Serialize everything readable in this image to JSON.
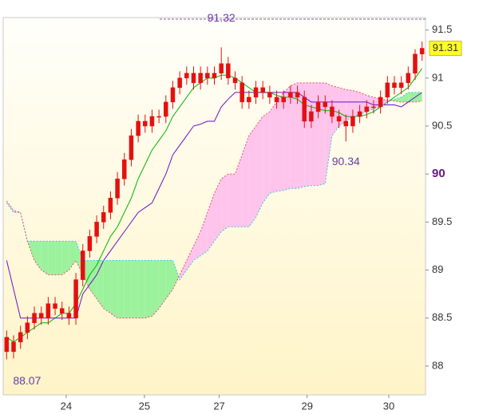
{
  "chart_data": {
    "type": "candlestick",
    "xlim": [
      -0.5,
      60.5
    ],
    "ylim": [
      87.7,
      91.63
    ],
    "xticks": [
      {
        "value": 8.6,
        "label": "24"
      },
      {
        "value": 19.9,
        "label": "25"
      },
      {
        "value": 30.7,
        "label": "27"
      },
      {
        "value": 43.4,
        "label": "29"
      },
      {
        "value": 55.2,
        "label": "30"
      }
    ],
    "yticks": [
      91.5,
      91,
      90.5,
      90,
      89.5,
      89,
      88.5,
      88
    ],
    "candle_color": "#e41010",
    "open": [
      88.3,
      88.15,
      88.25,
      88.35,
      88.45,
      88.55,
      88.5,
      88.65,
      88.6,
      88.55,
      88.5,
      88.9,
      89.2,
      89.35,
      89.5,
      89.6,
      89.75,
      89.95,
      90.15,
      90.4,
      90.55,
      90.5,
      90.6,
      90.6,
      90.75,
      90.9,
      91.0,
      91.05,
      90.95,
      91.05,
      91.0,
      91.05,
      91.15,
      91.0,
      90.95,
      90.75,
      90.8,
      90.9,
      90.85,
      90.8,
      90.75,
      90.8,
      90.85,
      90.8,
      90.55,
      90.65,
      90.75,
      90.7,
      90.6,
      90.55,
      90.5,
      90.6,
      90.65,
      90.7,
      90.7,
      90.8,
      90.95,
      90.9,
      90.95,
      91.05,
      91.25
    ],
    "high": [
      88.37,
      88.32,
      88.42,
      88.52,
      88.62,
      88.62,
      88.72,
      88.72,
      88.67,
      88.62,
      88.97,
      89.27,
      89.42,
      89.57,
      89.67,
      89.82,
      90.02,
      90.22,
      90.47,
      90.62,
      90.62,
      90.67,
      90.67,
      90.82,
      90.97,
      91.07,
      91.12,
      91.12,
      91.12,
      91.12,
      91.12,
      91.32,
      91.22,
      91.07,
      91.02,
      90.87,
      90.97,
      90.97,
      90.92,
      90.87,
      90.87,
      90.92,
      90.92,
      90.87,
      90.72,
      90.82,
      90.82,
      90.77,
      90.67,
      90.62,
      90.67,
      90.72,
      90.77,
      90.77,
      90.87,
      91.02,
      91.02,
      91.02,
      91.12,
      91.3,
      91.38
    ],
    "low": [
      88.07,
      88.08,
      88.18,
      88.28,
      88.38,
      88.43,
      88.43,
      88.53,
      88.48,
      88.43,
      88.43,
      88.83,
      89.13,
      89.28,
      89.43,
      89.53,
      89.68,
      89.88,
      90.08,
      90.33,
      90.43,
      90.43,
      90.53,
      90.53,
      90.68,
      90.83,
      90.93,
      90.88,
      90.88,
      90.93,
      90.93,
      90.98,
      90.93,
      90.88,
      90.68,
      90.68,
      90.73,
      90.78,
      90.73,
      90.68,
      90.68,
      90.73,
      90.73,
      90.48,
      90.48,
      90.58,
      90.63,
      90.53,
      90.48,
      90.34,
      90.43,
      90.53,
      90.58,
      90.63,
      90.63,
      90.73,
      90.83,
      90.83,
      90.88,
      90.98,
      91.18
    ],
    "close": [
      88.15,
      88.25,
      88.35,
      88.45,
      88.55,
      88.5,
      88.65,
      88.6,
      88.55,
      88.5,
      88.9,
      89.2,
      89.35,
      89.5,
      89.6,
      89.75,
      89.95,
      90.15,
      90.4,
      90.55,
      90.5,
      90.6,
      90.6,
      90.75,
      90.9,
      91.0,
      91.05,
      90.95,
      91.05,
      91.0,
      91.05,
      91.15,
      91.0,
      90.95,
      90.75,
      90.8,
      90.9,
      90.85,
      90.8,
      90.75,
      90.8,
      90.85,
      90.8,
      90.55,
      90.65,
      90.75,
      90.7,
      90.6,
      90.55,
      90.5,
      90.6,
      90.65,
      90.7,
      90.7,
      90.8,
      90.95,
      90.9,
      90.95,
      91.05,
      91.25,
      91.31
    ],
    "cloud_colors": {
      "bull": "#9cf29c",
      "bear": "#ffc4ec"
    },
    "lines": [
      {
        "color": "#00b400",
        "values": [
          88.3,
          88.25,
          88.3,
          88.35,
          88.4,
          88.45,
          88.45,
          88.5,
          88.55,
          88.55,
          88.65,
          88.8,
          88.95,
          89.05,
          89.2,
          89.35,
          89.45,
          89.6,
          89.75,
          89.95,
          90.1,
          90.25,
          90.35,
          90.45,
          90.6,
          90.7,
          90.8,
          90.9,
          90.95,
          91.0,
          91.0,
          91.03,
          91.03,
          91.0,
          90.95,
          90.9,
          90.85,
          90.85,
          90.85,
          90.82,
          90.8,
          90.8,
          90.78,
          90.72,
          90.7,
          90.68,
          90.66,
          90.66,
          90.64,
          90.6,
          90.6,
          90.6,
          90.62,
          90.65,
          90.7,
          90.75,
          90.8,
          90.85,
          90.9,
          91.0,
          91.1
        ]
      },
      {
        "color": "#6a10c8",
        "values": [
          89.1,
          88.8,
          88.5,
          88.5,
          88.5,
          88.5,
          88.5,
          88.5,
          88.5,
          88.5,
          88.5,
          88.75,
          88.85,
          88.95,
          89.1,
          89.2,
          89.3,
          89.4,
          89.5,
          89.6,
          89.65,
          89.7,
          89.85,
          90.0,
          90.2,
          90.3,
          90.4,
          90.5,
          90.52,
          90.55,
          90.55,
          90.7,
          90.78,
          90.85,
          90.85,
          90.85,
          90.85,
          90.85,
          90.85,
          90.85,
          90.85,
          90.85,
          90.85,
          90.8,
          90.75,
          90.75,
          90.75,
          90.75,
          90.75,
          90.75,
          90.75,
          90.75,
          90.75,
          90.72,
          90.72,
          90.72,
          90.72,
          90.7,
          90.75,
          90.8,
          90.85
        ]
      },
      {
        "color": "#30c8e8",
        "dashed": true,
        "values": [
          89.7,
          89.6,
          89.6,
          89.3,
          89.3,
          89.3,
          89.3,
          89.3,
          89.3,
          89.3,
          89.3,
          89.1,
          89.1,
          89.1,
          89.1,
          89.1,
          89.1,
          89.1,
          89.1,
          89.1,
          89.1,
          89.1,
          89.1,
          89.1,
          89.1,
          88.9,
          89.0,
          89.1,
          89.15,
          89.2,
          89.3,
          89.4,
          89.45,
          89.45,
          89.45,
          89.45,
          89.55,
          89.7,
          89.8,
          89.82,
          89.83,
          89.85,
          89.85,
          89.87,
          89.88,
          89.88,
          89.9,
          90.4,
          90.5,
          90.55,
          90.6,
          90.62,
          90.65,
          90.68,
          90.7,
          90.75,
          90.78,
          90.8,
          90.85,
          90.85,
          90.85
        ]
      },
      {
        "color": "#e05070",
        "dashed": true,
        "values": [
          89.72,
          89.62,
          89.6,
          89.3,
          89.1,
          89.0,
          88.95,
          88.95,
          88.95,
          89.0,
          89.1,
          88.95,
          88.8,
          88.7,
          88.6,
          88.55,
          88.5,
          88.5,
          88.5,
          88.5,
          88.5,
          88.52,
          88.6,
          88.7,
          88.8,
          88.95,
          89.1,
          89.25,
          89.4,
          89.6,
          89.8,
          89.95,
          90.0,
          90.0,
          90.2,
          90.4,
          90.5,
          90.6,
          90.65,
          90.75,
          90.85,
          90.92,
          90.95,
          90.95,
          90.95,
          90.95,
          90.95,
          90.92,
          90.9,
          90.88,
          90.87,
          90.85,
          90.82,
          90.8,
          90.78,
          90.77,
          90.76,
          90.75,
          90.75,
          90.75,
          90.76
        ]
      }
    ]
  }
}
